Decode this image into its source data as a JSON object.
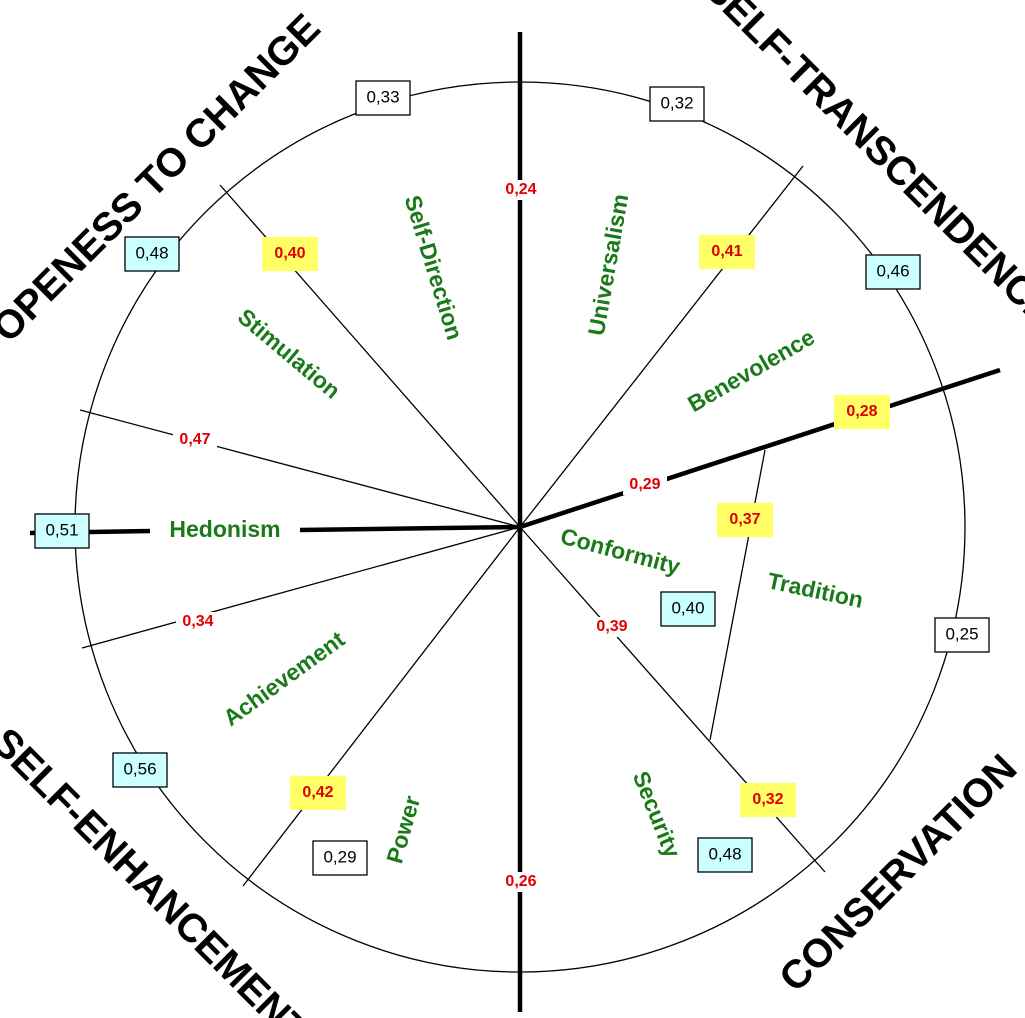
{
  "quadrants": [
    "OPENESS TO CHANGE",
    "SELF-TRANSCENDENCE",
    "SELF-ENHANCEMENT",
    "CONSERVATION"
  ],
  "values": [
    "Self-Direction",
    "Universalism",
    "Stimulation",
    "Benevolence",
    "Hedonism",
    "Conformity",
    "Tradition",
    "Achievement",
    "Power",
    "Security"
  ],
  "line_labels": [
    "0,24",
    "0,40",
    "0,41",
    "0,47",
    "0,28",
    "0,29",
    "0,37",
    "0,34",
    "0,39",
    "0,42",
    "0,32",
    "0,26"
  ],
  "boxes": [
    "0,33",
    "0,32",
    "0,48",
    "0,46",
    "0,51",
    "0,40",
    "0,25",
    "0,56",
    "0,29",
    "0,48"
  ]
}
